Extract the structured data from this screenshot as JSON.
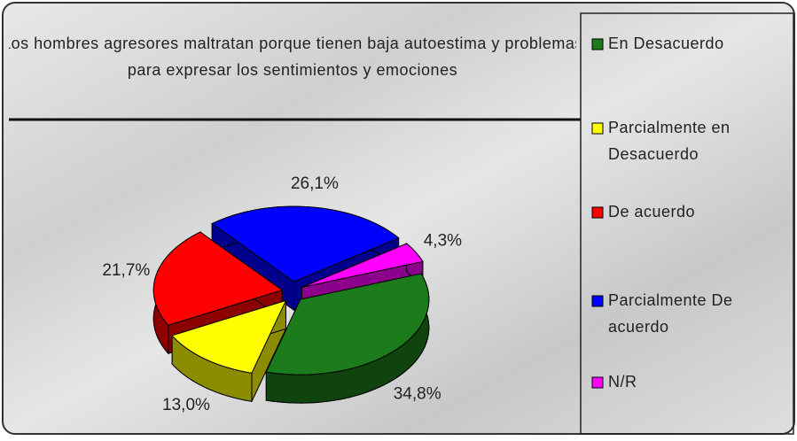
{
  "chart_data": {
    "type": "pie",
    "title": "Los hombres agresores maltratan porque tienen baja autoestima y problemas para expresar los sentimientos y emociones",
    "categories": [
      "En Desacuerdo",
      "Parcialmente en Desacuerdo",
      "De acuerdo",
      "Parcialmente De acuerdo",
      "N/R"
    ],
    "values": [
      34.8,
      13.0,
      21.7,
      26.1,
      4.3
    ],
    "value_labels": [
      "34,8%",
      "13,0%",
      "21,7%",
      "26,1%",
      "4,3%"
    ],
    "colors": [
      "#1c7c1c",
      "#ffff00",
      "#ff0000",
      "#0000ff",
      "#ff00ff"
    ],
    "legend": "right"
  }
}
